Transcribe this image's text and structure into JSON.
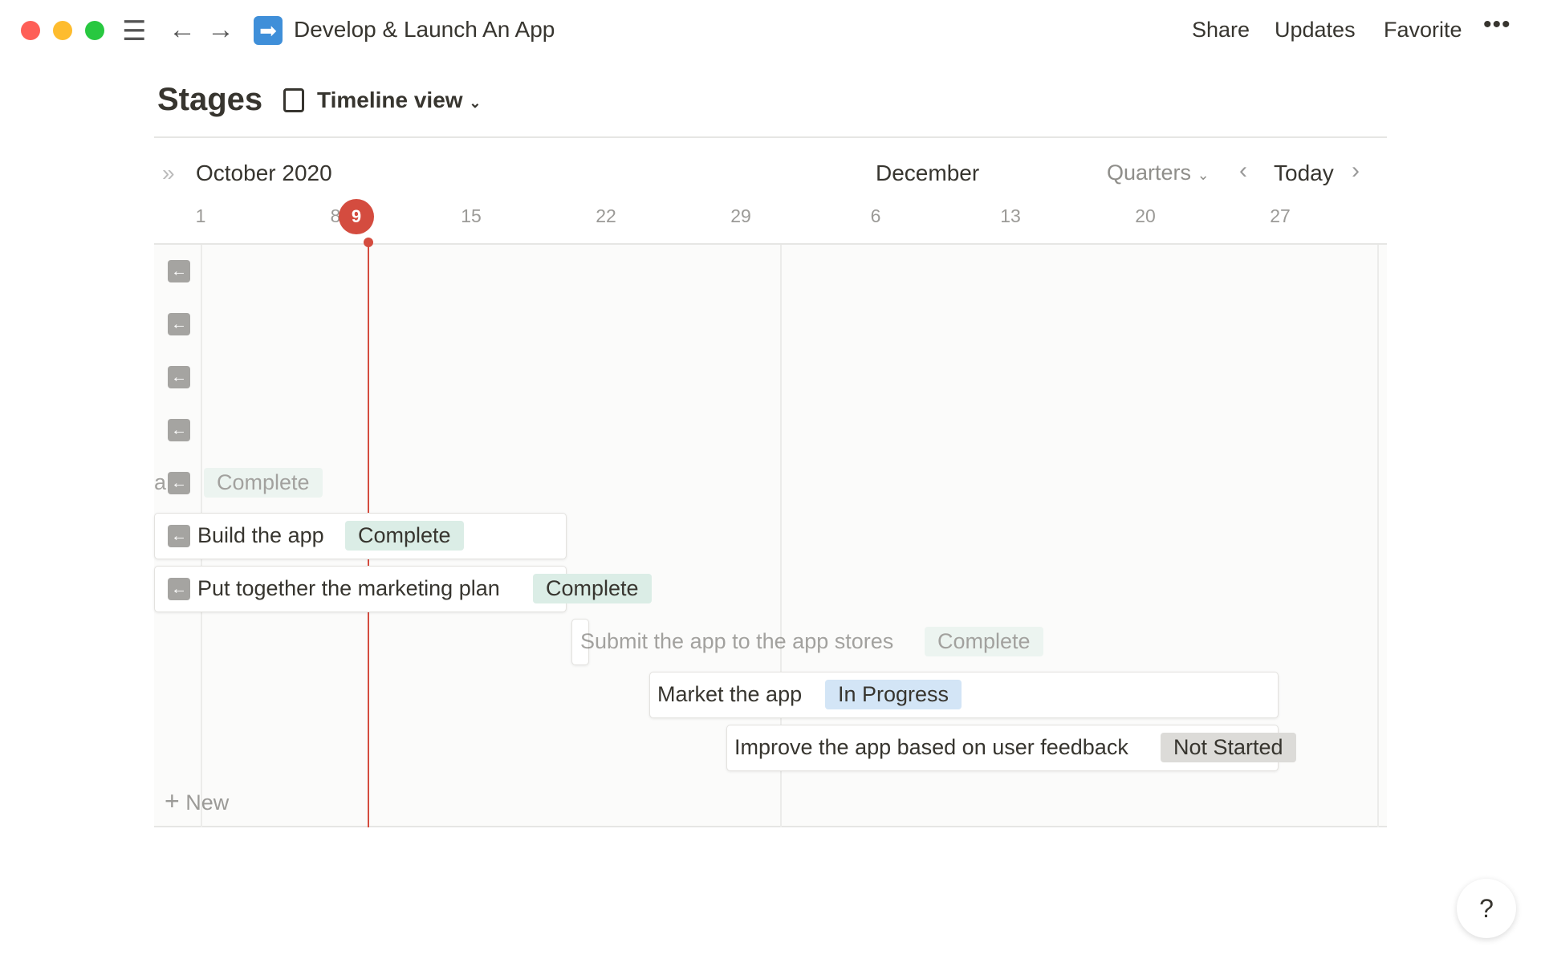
{
  "window": {
    "title": "Develop & Launch An App",
    "icon": "arrow-right-emoji-icon",
    "actions": [
      "Share",
      "Updates",
      "Favorite"
    ]
  },
  "page": {
    "title": "Stages",
    "view_label": "Timeline view",
    "view_icon": "list-document-icon"
  },
  "timeline": {
    "month_left": "October 2020",
    "month_right": "December",
    "scale": "Quarters",
    "today_label": "Today",
    "today_day": "9",
    "today_color": "#d44c3f",
    "days": [
      "1",
      "8",
      "15",
      "22",
      "29",
      "6",
      "13",
      "20",
      "27"
    ],
    "new_label": "New",
    "items": [
      {
        "title": "Build the app",
        "status": "Complete"
      },
      {
        "title": "Put together the marketing plan",
        "status": "Complete"
      },
      {
        "title": "Submit the app to the app stores",
        "status": "Complete"
      },
      {
        "title": "Market the app",
        "status": "In Progress"
      },
      {
        "title": "Improve the app based on user feedback",
        "status": "Not Started"
      }
    ],
    "offscreen_row": {
      "title_fragment": "a",
      "status": "Complete"
    }
  },
  "help_label": "?"
}
